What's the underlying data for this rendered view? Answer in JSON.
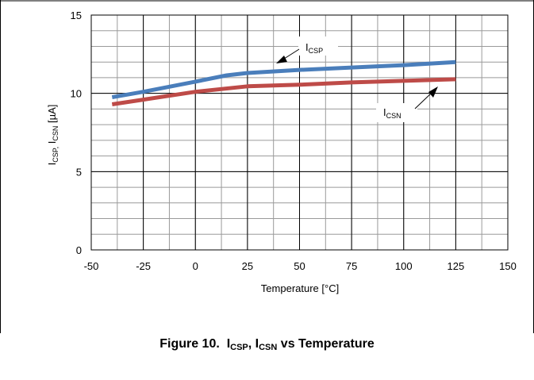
{
  "caption": {
    "figure": "Figure 10.",
    "main1": "I",
    "sub1": "CSP",
    "sep": ", ",
    "main2": "I",
    "sub2": "CSN",
    "rest": " vs Temperature"
  },
  "chart_data": {
    "type": "line",
    "title": "",
    "xlabel": "Temperature [°C]",
    "ylabel": "ICSP, ICSN [µA]",
    "ylabel_parts": {
      "main1": "I",
      "sub1": "CSP,",
      "main2": " I",
      "sub2": "CSN",
      "rest": " [µA]"
    },
    "xlim": [
      -50,
      150
    ],
    "ylim": [
      0,
      15
    ],
    "xticks": [
      -50,
      -25,
      0,
      25,
      50,
      75,
      100,
      125,
      150
    ],
    "yticks": [
      0,
      5,
      10,
      15
    ],
    "grid": true,
    "x_minor_per_major": 2,
    "y_minor_per_major": 5,
    "series": [
      {
        "name": "ICSP",
        "color": "#4a7ebb",
        "x": [
          -40,
          -25,
          0,
          15,
          25,
          50,
          75,
          100,
          125
        ],
        "y": [
          9.75,
          10.1,
          10.75,
          11.15,
          11.3,
          11.5,
          11.65,
          11.8,
          12.0
        ]
      },
      {
        "name": "ICSN",
        "color": "#be4b48",
        "x": [
          -40,
          -25,
          0,
          25,
          50,
          75,
          100,
          125
        ],
        "y": [
          9.3,
          9.6,
          10.1,
          10.45,
          10.55,
          10.7,
          10.8,
          10.9
        ]
      }
    ],
    "annotations": [
      {
        "main": "I",
        "sub": "CSP",
        "points_to": "ICSP"
      },
      {
        "main": "I",
        "sub": "CSN",
        "points_to": "ICSN"
      }
    ]
  }
}
